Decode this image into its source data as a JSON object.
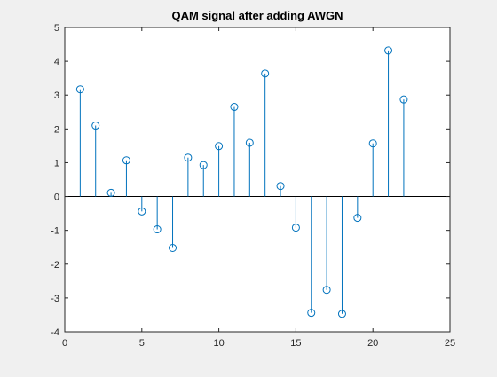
{
  "chart_data": {
    "type": "stem",
    "title": "QAM signal after adding AWGN",
    "xlabel": "",
    "ylabel": "",
    "xlim": [
      0,
      25
    ],
    "ylim": [
      -4,
      5
    ],
    "x_ticks": [
      0,
      5,
      10,
      15,
      20,
      25
    ],
    "y_ticks": [
      -4,
      -3,
      -2,
      -1,
      0,
      1,
      2,
      3,
      4,
      5
    ],
    "grid": false,
    "baseline": 0,
    "marker": "circle-open",
    "series": [
      {
        "color": "#0072bd",
        "x": [
          1,
          2,
          3,
          4,
          5,
          6,
          7,
          8,
          9,
          10,
          11,
          12,
          13,
          14,
          15,
          16,
          17,
          18,
          19,
          20,
          21,
          22
        ],
        "values": [
          3.17,
          2.1,
          0.11,
          1.07,
          -0.44,
          -0.97,
          -1.52,
          1.15,
          0.93,
          1.49,
          2.65,
          1.59,
          3.64,
          0.31,
          -0.92,
          -3.44,
          -2.76,
          -3.47,
          -0.63,
          1.57,
          4.32,
          2.87
        ]
      }
    ]
  },
  "colors": {
    "figure_bg": "#f0f0f0",
    "axes_bg": "#ffffff",
    "axes_line": "#262626",
    "baseline": "#000000"
  }
}
